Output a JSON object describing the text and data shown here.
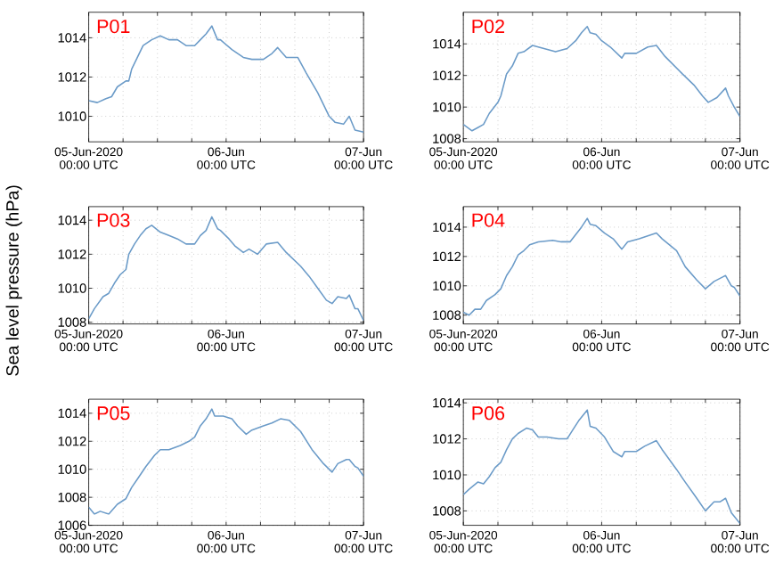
{
  "chart_data": [
    {
      "type": "line",
      "title": "P01",
      "grid": true,
      "xlim": [
        "2020-06-05T00:00",
        "2020-06-07T00:00"
      ],
      "ylim": [
        1008.7,
        1015.3
      ],
      "yticks": [
        1010,
        1012,
        1014
      ],
      "xticks": [
        {
          "value": "2020-06-05T00:00",
          "label": "05-Jun-2020\n00:00 UTC"
        },
        {
          "value": "2020-06-05T06:00",
          "label": null
        },
        {
          "value": "2020-06-05T12:00",
          "label": null
        },
        {
          "value": "2020-06-05T18:00",
          "label": null
        },
        {
          "value": "2020-06-06T00:00",
          "label": "06-Jun\n00:00 UTC"
        },
        {
          "value": "2020-06-06T06:00",
          "label": null
        },
        {
          "value": "2020-06-06T12:00",
          "label": null
        },
        {
          "value": "2020-06-06T18:00",
          "label": null
        },
        {
          "value": "2020-06-07T00:00",
          "label": "07-Jun\n00:00 UTC"
        }
      ],
      "x": [
        "2020-06-05T00:00",
        "2020-06-05T01:30",
        "2020-06-05T03:00",
        "2020-06-05T04:00",
        "2020-06-05T05:00",
        "2020-06-05T06:30",
        "2020-06-05T07:00",
        "2020-06-05T07:30",
        "2020-06-05T08:30",
        "2020-06-05T09:30",
        "2020-06-05T11:00",
        "2020-06-05T12:30",
        "2020-06-05T14:00",
        "2020-06-05T15:30",
        "2020-06-05T17:00",
        "2020-06-05T18:30",
        "2020-06-05T19:30",
        "2020-06-05T20:30",
        "2020-06-05T21:30",
        "2020-06-05T22:30",
        "2020-06-05T23:00",
        "2020-06-06T01:00",
        "2020-06-06T03:00",
        "2020-06-06T04:30",
        "2020-06-06T06:30",
        "2020-06-06T08:00",
        "2020-06-06T09:00",
        "2020-06-06T10:30",
        "2020-06-06T12:30",
        "2020-06-06T14:00",
        "2020-06-06T16:00",
        "2020-06-06T18:00",
        "2020-06-06T19:00",
        "2020-06-06T20:30",
        "2020-06-06T21:30",
        "2020-06-06T22:30",
        "2020-06-07T00:00"
      ],
      "series": [
        {
          "color": "#6b9bc8",
          "values": [
            1010.8,
            1010.7,
            1010.9,
            1011.0,
            1011.5,
            1011.8,
            1011.8,
            1012.4,
            1013.0,
            1013.6,
            1013.9,
            1014.1,
            1013.9,
            1013.9,
            1013.6,
            1013.6,
            1013.9,
            1014.2,
            1014.6,
            1013.9,
            1013.9,
            1013.4,
            1013.0,
            1012.9,
            1012.9,
            1013.2,
            1013.5,
            1013.0,
            1013.0,
            1012.2,
            1011.2,
            1010.0,
            1009.7,
            1009.6,
            1010.0,
            1009.3,
            1009.2
          ]
        }
      ]
    },
    {
      "type": "line",
      "title": "P02",
      "grid": true,
      "xlim": [
        "2020-06-05T00:00",
        "2020-06-07T00:00"
      ],
      "ylim": [
        1007.8,
        1016
      ],
      "yticks": [
        1008,
        1010,
        1012,
        1014
      ],
      "xticks": [
        {
          "value": "2020-06-05T00:00",
          "label": "05-Jun-2020\n00:00 UTC"
        },
        {
          "value": "2020-06-05T06:00",
          "label": null
        },
        {
          "value": "2020-06-05T12:00",
          "label": null
        },
        {
          "value": "2020-06-05T18:00",
          "label": null
        },
        {
          "value": "2020-06-06T00:00",
          "label": "06-Jun\n00:00 UTC"
        },
        {
          "value": "2020-06-06T06:00",
          "label": null
        },
        {
          "value": "2020-06-06T12:00",
          "label": null
        },
        {
          "value": "2020-06-06T18:00",
          "label": null
        },
        {
          "value": "2020-06-07T00:00",
          "label": "07-Jun\n00:00 UTC"
        }
      ],
      "x": [
        "2020-06-05T00:00",
        "2020-06-05T01:30",
        "2020-06-05T02:30",
        "2020-06-05T03:30",
        "2020-06-05T04:30",
        "2020-06-05T06:00",
        "2020-06-05T06:30",
        "2020-06-05T07:30",
        "2020-06-05T08:30",
        "2020-06-05T09:30",
        "2020-06-05T10:30",
        "2020-06-05T12:00",
        "2020-06-05T14:00",
        "2020-06-05T16:00",
        "2020-06-05T18:00",
        "2020-06-05T19:30",
        "2020-06-05T20:30",
        "2020-06-05T21:30",
        "2020-06-05T22:00",
        "2020-06-05T23:00",
        "2020-06-06T00:00",
        "2020-06-06T01:30",
        "2020-06-06T03:30",
        "2020-06-06T04:00",
        "2020-06-06T06:00",
        "2020-06-06T08:00",
        "2020-06-06T09:30",
        "2020-06-06T11:00",
        "2020-06-06T14:00",
        "2020-06-06T16:00",
        "2020-06-06T17:30",
        "2020-06-06T18:30",
        "2020-06-06T20:00",
        "2020-06-06T21:30",
        "2020-06-06T22:00",
        "2020-06-06T23:00",
        "2020-06-07T00:00"
      ],
      "series": [
        {
          "color": "#6b9bc8",
          "values": [
            1008.9,
            1008.5,
            1008.7,
            1008.9,
            1009.6,
            1010.3,
            1010.7,
            1012.1,
            1012.6,
            1013.4,
            1013.5,
            1013.9,
            1013.7,
            1013.5,
            1013.7,
            1014.2,
            1014.7,
            1015.1,
            1014.7,
            1014.6,
            1014.2,
            1013.8,
            1013.1,
            1013.4,
            1013.4,
            1013.8,
            1013.9,
            1013.2,
            1012.1,
            1011.4,
            1010.7,
            1010.3,
            1010.6,
            1011.2,
            1010.7,
            1010.0,
            1009.4
          ]
        }
      ]
    },
    {
      "type": "line",
      "title": "P03",
      "ylabel": "Sea level pressure (hPa)",
      "grid": true,
      "xlim": [
        "2020-06-05T00:00",
        "2020-06-07T00:00"
      ],
      "ylim": [
        1007.9,
        1014.8
      ],
      "yticks": [
        1008,
        1010,
        1012,
        1014
      ],
      "xticks": [
        {
          "value": "2020-06-05T00:00",
          "label": "05-Jun-2020\n00:00 UTC"
        },
        {
          "value": "2020-06-05T06:00",
          "label": null
        },
        {
          "value": "2020-06-05T12:00",
          "label": null
        },
        {
          "value": "2020-06-05T18:00",
          "label": null
        },
        {
          "value": "2020-06-06T00:00",
          "label": "06-Jun\n00:00 UTC"
        },
        {
          "value": "2020-06-06T06:00",
          "label": null
        },
        {
          "value": "2020-06-06T12:00",
          "label": null
        },
        {
          "value": "2020-06-06T18:00",
          "label": null
        },
        {
          "value": "2020-06-07T00:00",
          "label": "07-Jun\n00:00 UTC"
        }
      ],
      "x": [
        "2020-06-05T00:00",
        "2020-06-05T01:00",
        "2020-06-05T02:30",
        "2020-06-05T03:30",
        "2020-06-05T04:30",
        "2020-06-05T05:30",
        "2020-06-05T06:30",
        "2020-06-05T07:00",
        "2020-06-05T08:00",
        "2020-06-05T09:00",
        "2020-06-05T10:00",
        "2020-06-05T11:00",
        "2020-06-05T12:30",
        "2020-06-05T14:00",
        "2020-06-05T15:30",
        "2020-06-05T17:00",
        "2020-06-05T18:30",
        "2020-06-05T19:30",
        "2020-06-05T20:30",
        "2020-06-05T21:30",
        "2020-06-05T22:30",
        "2020-06-05T23:00",
        "2020-06-06T00:30",
        "2020-06-06T01:30",
        "2020-06-06T03:00",
        "2020-06-06T04:00",
        "2020-06-06T05:30",
        "2020-06-06T07:00",
        "2020-06-06T09:00",
        "2020-06-06T10:30",
        "2020-06-06T13:00",
        "2020-06-06T14:30",
        "2020-06-06T16:00",
        "2020-06-06T17:30",
        "2020-06-06T18:30",
        "2020-06-06T19:30",
        "2020-06-06T21:00",
        "2020-06-06T21:30",
        "2020-06-06T22:30",
        "2020-06-06T23:00",
        "2020-06-07T00:00"
      ],
      "series": [
        {
          "color": "#6b9bc8",
          "values": [
            1008.2,
            1008.8,
            1009.5,
            1009.7,
            1010.3,
            1010.8,
            1011.1,
            1012.0,
            1012.6,
            1013.1,
            1013.5,
            1013.7,
            1013.3,
            1013.1,
            1012.9,
            1012.6,
            1012.6,
            1013.1,
            1013.4,
            1014.2,
            1013.5,
            1013.4,
            1012.9,
            1012.5,
            1012.1,
            1012.3,
            1012.0,
            1012.6,
            1012.7,
            1012.1,
            1011.3,
            1010.7,
            1010.0,
            1009.3,
            1009.1,
            1009.5,
            1009.4,
            1009.6,
            1008.8,
            1008.8,
            1008.1
          ]
        }
      ]
    },
    {
      "type": "line",
      "title": "P04",
      "grid": true,
      "xlim": [
        "2020-06-05T00:00",
        "2020-06-07T00:00"
      ],
      "ylim": [
        1007.4,
        1015.4
      ],
      "yticks": [
        1008,
        1010,
        1012,
        1014
      ],
      "xticks": [
        {
          "value": "2020-06-05T00:00",
          "label": "05-Jun-2020\n00:00 UTC"
        },
        {
          "value": "2020-06-05T06:00",
          "label": null
        },
        {
          "value": "2020-06-05T12:00",
          "label": null
        },
        {
          "value": "2020-06-05T18:00",
          "label": null
        },
        {
          "value": "2020-06-06T00:00",
          "label": "06-Jun\n00:00 UTC"
        },
        {
          "value": "2020-06-06T06:00",
          "label": null
        },
        {
          "value": "2020-06-06T12:00",
          "label": null
        },
        {
          "value": "2020-06-06T18:00",
          "label": null
        },
        {
          "value": "2020-06-07T00:00",
          "label": "07-Jun\n00:00 UTC"
        }
      ],
      "x": [
        "2020-06-05T00:00",
        "2020-06-05T01:00",
        "2020-06-05T02:00",
        "2020-06-05T03:00",
        "2020-06-05T04:00",
        "2020-06-05T05:30",
        "2020-06-05T06:30",
        "2020-06-05T07:30",
        "2020-06-05T08:30",
        "2020-06-05T09:30",
        "2020-06-05T10:30",
        "2020-06-05T11:30",
        "2020-06-05T13:00",
        "2020-06-05T15:30",
        "2020-06-05T17:00",
        "2020-06-05T18:30",
        "2020-06-05T19:30",
        "2020-06-05T20:30",
        "2020-06-05T21:30",
        "2020-06-05T22:00",
        "2020-06-05T23:00",
        "2020-06-06T00:30",
        "2020-06-06T02:00",
        "2020-06-06T03:30",
        "2020-06-06T04:30",
        "2020-06-06T06:30",
        "2020-06-06T08:00",
        "2020-06-06T09:30",
        "2020-06-06T10:30",
        "2020-06-06T13:00",
        "2020-06-06T14:30",
        "2020-06-06T16:30",
        "2020-06-06T18:00",
        "2020-06-06T19:30",
        "2020-06-06T21:00",
        "2020-06-06T21:30",
        "2020-06-06T22:30",
        "2020-06-06T23:00",
        "2020-06-07T00:00"
      ],
      "series": [
        {
          "color": "#6b9bc8",
          "values": [
            1008.2,
            1008.0,
            1008.4,
            1008.4,
            1009.0,
            1009.4,
            1009.8,
            1010.7,
            1011.3,
            1012.1,
            1012.4,
            1012.8,
            1013.0,
            1013.1,
            1013.0,
            1013.0,
            1013.5,
            1014.0,
            1014.6,
            1014.2,
            1014.1,
            1013.6,
            1013.2,
            1012.5,
            1013.0,
            1013.2,
            1013.4,
            1013.6,
            1013.2,
            1012.4,
            1011.3,
            1010.4,
            1009.8,
            1010.3,
            1010.6,
            1010.7,
            1010.0,
            1009.9,
            1009.3
          ]
        }
      ]
    },
    {
      "type": "line",
      "title": "P05",
      "grid": true,
      "xlim": [
        "2020-06-05T00:00",
        "2020-06-07T00:00"
      ],
      "ylim": [
        1006,
        1015
      ],
      "yticks": [
        1006,
        1008,
        1010,
        1012,
        1014
      ],
      "xticks": [
        {
          "value": "2020-06-05T00:00",
          "label": "05-Jun-2020\n00:00 UTC"
        },
        {
          "value": "2020-06-05T06:00",
          "label": null
        },
        {
          "value": "2020-06-05T12:00",
          "label": null
        },
        {
          "value": "2020-06-05T18:00",
          "label": null
        },
        {
          "value": "2020-06-06T00:00",
          "label": "06-Jun\n00:00 UTC"
        },
        {
          "value": "2020-06-06T06:00",
          "label": null
        },
        {
          "value": "2020-06-06T12:00",
          "label": null
        },
        {
          "value": "2020-06-06T18:00",
          "label": null
        },
        {
          "value": "2020-06-07T00:00",
          "label": "07-Jun\n00:00 UTC"
        }
      ],
      "x": [
        "2020-06-05T00:00",
        "2020-06-05T01:00",
        "2020-06-05T02:00",
        "2020-06-05T03:30",
        "2020-06-05T05:00",
        "2020-06-05T06:30",
        "2020-06-05T07:30",
        "2020-06-05T08:30",
        "2020-06-05T10:00",
        "2020-06-05T11:30",
        "2020-06-05T12:30",
        "2020-06-05T14:00",
        "2020-06-05T16:00",
        "2020-06-05T17:30",
        "2020-06-05T18:30",
        "2020-06-05T19:30",
        "2020-06-05T20:30",
        "2020-06-05T21:30",
        "2020-06-05T22:00",
        "2020-06-05T23:30",
        "2020-06-06T01:00",
        "2020-06-06T02:00",
        "2020-06-06T03:30",
        "2020-06-06T04:30",
        "2020-06-06T06:30",
        "2020-06-06T08:00",
        "2020-06-06T09:30",
        "2020-06-06T11:00",
        "2020-06-06T13:00",
        "2020-06-06T15:00",
        "2020-06-06T17:00",
        "2020-06-06T18:30",
        "2020-06-06T19:30",
        "2020-06-06T21:00",
        "2020-06-06T21:30",
        "2020-06-06T22:30",
        "2020-06-06T23:00",
        "2020-06-07T00:00"
      ],
      "series": [
        {
          "color": "#6b9bc8",
          "values": [
            1007.3,
            1006.8,
            1007.0,
            1006.8,
            1007.5,
            1007.9,
            1008.7,
            1009.3,
            1010.2,
            1011.0,
            1011.4,
            1011.4,
            1011.7,
            1012.0,
            1012.3,
            1013.1,
            1013.6,
            1014.3,
            1013.8,
            1013.8,
            1013.6,
            1013.1,
            1012.5,
            1012.8,
            1013.1,
            1013.3,
            1013.6,
            1013.5,
            1012.7,
            1011.4,
            1010.4,
            1009.8,
            1010.4,
            1010.7,
            1010.7,
            1010.2,
            1010.1,
            1009.5
          ]
        }
      ]
    },
    {
      "type": "line",
      "title": "P06",
      "grid": true,
      "xlim": [
        "2020-06-05T00:00",
        "2020-06-07T00:00"
      ],
      "ylim": [
        1007.2,
        1014.2
      ],
      "yticks": [
        1008,
        1010,
        1012,
        1014
      ],
      "xticks": [
        {
          "value": "2020-06-05T00:00",
          "label": "05-Jun-2020\n00:00 UTC"
        },
        {
          "value": "2020-06-05T06:00",
          "label": null
        },
        {
          "value": "2020-06-05T12:00",
          "label": null
        },
        {
          "value": "2020-06-05T18:00",
          "label": null
        },
        {
          "value": "2020-06-06T00:00",
          "label": "06-Jun\n00:00 UTC"
        },
        {
          "value": "2020-06-06T06:00",
          "label": null
        },
        {
          "value": "2020-06-06T12:00",
          "label": null
        },
        {
          "value": "2020-06-06T18:00",
          "label": null
        },
        {
          "value": "2020-06-07T00:00",
          "label": "07-Jun\n00:00 UTC"
        }
      ],
      "x": [
        "2020-06-05T00:00",
        "2020-06-05T01:00",
        "2020-06-05T02:30",
        "2020-06-05T03:30",
        "2020-06-05T04:30",
        "2020-06-05T05:30",
        "2020-06-05T06:30",
        "2020-06-05T07:30",
        "2020-06-05T08:30",
        "2020-06-05T09:30",
        "2020-06-05T11:00",
        "2020-06-05T12:00",
        "2020-06-05T13:00",
        "2020-06-05T14:30",
        "2020-06-05T16:30",
        "2020-06-05T18:00",
        "2020-06-05T19:00",
        "2020-06-05T20:00",
        "2020-06-05T21:30",
        "2020-06-05T22:00",
        "2020-06-05T23:00",
        "2020-06-06T00:30",
        "2020-06-06T02:00",
        "2020-06-06T03:30",
        "2020-06-06T04:00",
        "2020-06-06T06:00",
        "2020-06-06T07:30",
        "2020-06-06T09:30",
        "2020-06-06T10:30",
        "2020-06-06T13:00",
        "2020-06-06T14:30",
        "2020-06-06T16:30",
        "2020-06-06T18:00",
        "2020-06-06T19:30",
        "2020-06-06T20:30",
        "2020-06-06T21:30",
        "2020-06-06T22:30",
        "2020-06-06T23:00",
        "2020-06-07T00:00"
      ],
      "series": [
        {
          "color": "#6b9bc8",
          "values": [
            1008.9,
            1009.2,
            1009.6,
            1009.5,
            1009.9,
            1010.4,
            1010.7,
            1011.4,
            1012.0,
            1012.3,
            1012.6,
            1012.5,
            1012.1,
            1012.1,
            1012.0,
            1012.0,
            1012.5,
            1013.0,
            1013.6,
            1012.7,
            1012.6,
            1012.1,
            1011.3,
            1011.0,
            1011.3,
            1011.3,
            1011.6,
            1011.9,
            1011.4,
            1010.3,
            1009.6,
            1008.7,
            1008.0,
            1008.5,
            1008.5,
            1008.7,
            1007.9,
            1007.7,
            1007.3
          ]
        }
      ]
    }
  ]
}
